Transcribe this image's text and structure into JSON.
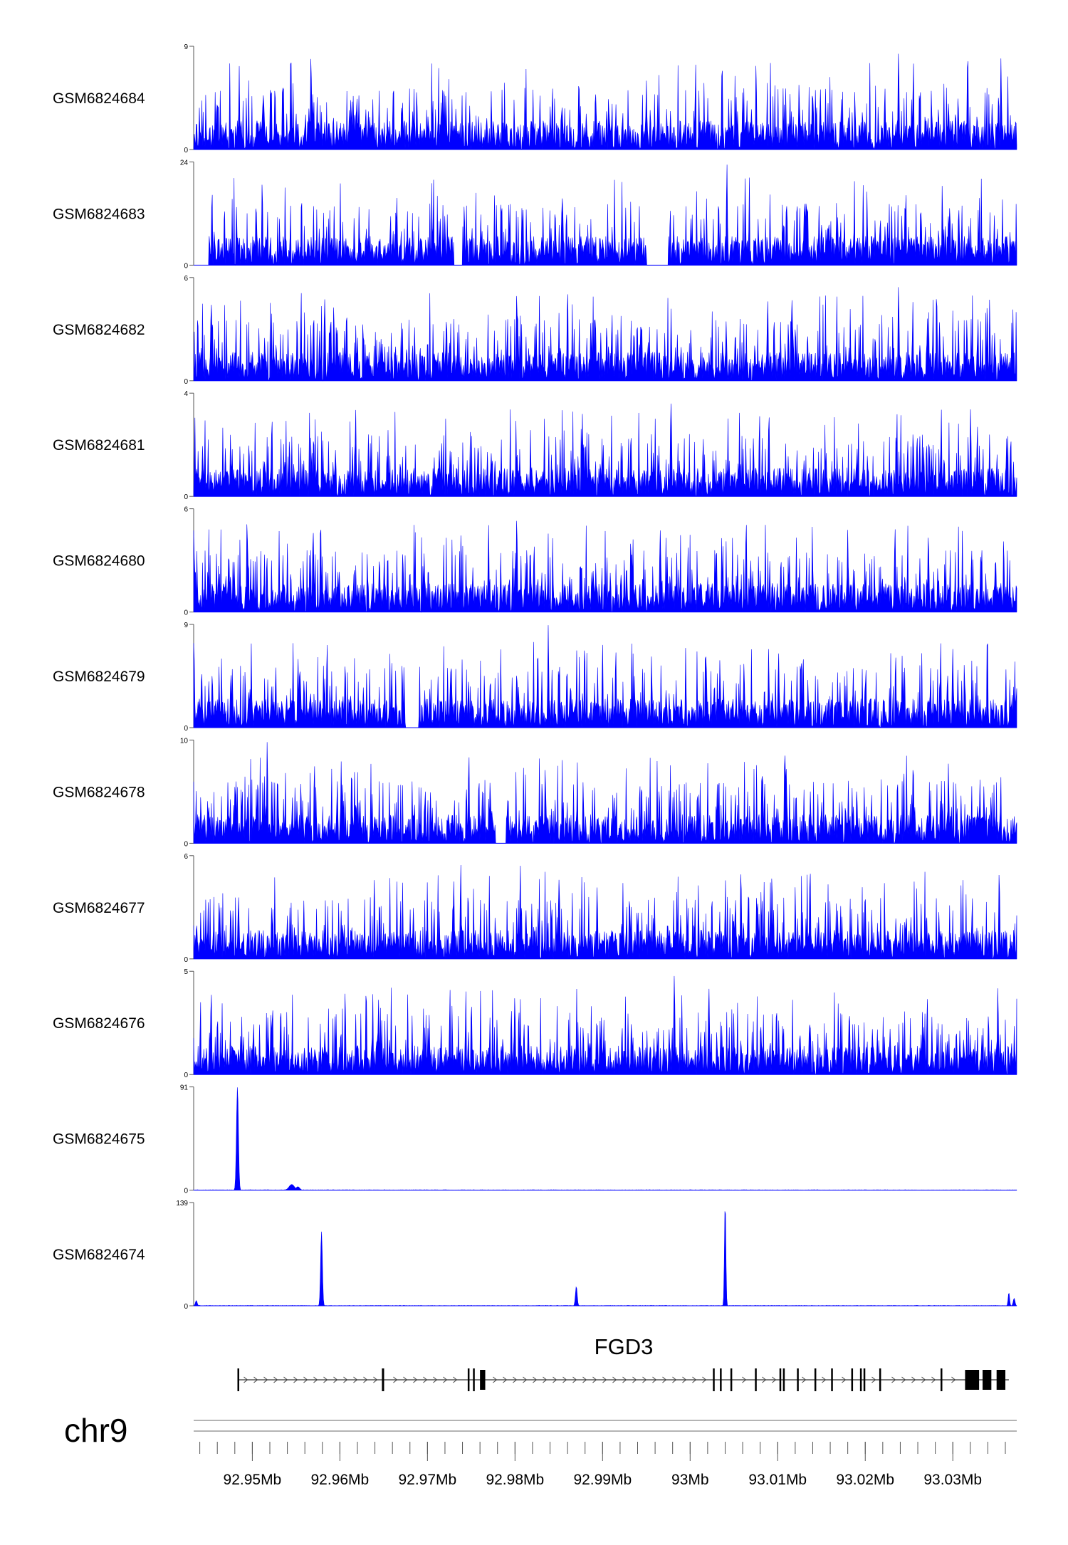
{
  "chart_data": {
    "type": "area",
    "chromosome": "chr9",
    "xlim_mb": [
      92.9433,
      93.0373
    ],
    "x_ticks_mb": [
      92.95,
      92.96,
      92.97,
      92.98,
      92.99,
      93.0,
      93.01,
      93.02,
      93.03
    ],
    "x_tick_labels": [
      "92.95Mb",
      "92.96Mb",
      "92.97Mb",
      "92.98Mb",
      "92.99Mb",
      "93Mb",
      "93.01Mb",
      "93.02Mb",
      "93.03Mb"
    ],
    "minor_tick_step_mb": 0.002,
    "color": "#0000ff",
    "series": [
      {
        "name": "GSM6824684",
        "ymin": "0",
        "ymax": "9",
        "profile": "noisy",
        "seed": 84,
        "range": [
          92.9433,
          93.0373
        ],
        "peaks": [
          [
            92.9544,
            9.0,
            6e-05
          ],
          [
            92.9567,
            8.5,
            6e-05
          ],
          [
            93.0238,
            8.9,
            6e-05
          ],
          [
            93.0317,
            8.9,
            6e-05
          ],
          [
            93.0355,
            8.0,
            6e-05
          ],
          [
            92.995,
            6.0,
            6e-05
          ]
        ]
      },
      {
        "name": "GSM6824683",
        "ymin": "0",
        "ymax": "24",
        "profile": "noisy",
        "seed": 83,
        "range": [
          92.945,
          93.0373
        ],
        "gaps": [
          [
            92.973,
            92.974
          ],
          [
            92.995,
            92.9975
          ]
        ],
        "peaks": [
          [
            92.9665,
            16.0,
            6e-05
          ],
          [
            92.9854,
            15.5,
            0.0001
          ],
          [
            93.0042,
            24.0,
            6e-05
          ],
          [
            92.9808,
            11.0,
            6e-05
          ],
          [
            93.011,
            15.5,
            6e-05
          ]
        ]
      },
      {
        "name": "GSM6824682",
        "ymin": "0",
        "ymax": "6",
        "profile": "noisy",
        "seed": 82,
        "range": [
          92.9433,
          93.0373
        ],
        "peaks": [
          [
            92.9802,
            5.3,
            6e-05
          ],
          [
            93.0238,
            5.8,
            6e-05
          ],
          [
            92.9453,
            4.8,
            6e-05
          ],
          [
            92.9593,
            4.5,
            6e-05
          ]
        ]
      },
      {
        "name": "GSM6824681",
        "ymin": "0",
        "ymax": "4",
        "profile": "noisy",
        "seed": 81,
        "range": [
          92.9433,
          93.0373
        ],
        "peaks": [
          [
            92.9618,
            3.4,
            6e-05
          ],
          [
            92.9978,
            3.8,
            6e-05
          ],
          [
            93.009,
            3.4,
            6e-05
          ],
          [
            92.9877,
            3.2,
            6e-05
          ],
          [
            93.0328,
            2.8,
            6e-05
          ]
        ]
      },
      {
        "name": "GSM6824680",
        "ymin": "0",
        "ymax": "6",
        "profile": "noisy",
        "seed": 80,
        "range": [
          92.9433,
          93.0373
        ],
        "peaks": [
          [
            92.9494,
            5.6,
            6e-05
          ],
          [
            92.9578,
            5.6,
            6e-05
          ],
          [
            92.9802,
            5.7,
            6e-05
          ],
          [
            93.0064,
            5.5,
            6e-05
          ],
          [
            92.9966,
            4.8,
            6e-05
          ],
          [
            93.018,
            4.8,
            6e-05
          ],
          [
            93.0234,
            5.0,
            6e-05
          ]
        ]
      },
      {
        "name": "GSM6824679",
        "ymin": "0",
        "ymax": "9",
        "profile": "noisy",
        "seed": 79,
        "range": [
          92.9433,
          93.0373
        ],
        "gaps": [
          [
            92.9675,
            92.969
          ]
        ],
        "peaks": [
          [
            92.9838,
            9.0,
            6e-05
          ],
          [
            92.9826,
            7.2,
            6e-05
          ],
          [
            93.0101,
            6.6,
            6e-05
          ],
          [
            93.0034,
            6.0,
            6e-05
          ]
        ]
      },
      {
        "name": "GSM6824678",
        "ymin": "0",
        "ymax": "10",
        "profile": "noisy",
        "seed": 78,
        "range": [
          92.9433,
          93.0373
        ],
        "gaps": [
          [
            92.9778,
            92.979
          ]
        ],
        "peaks": [
          [
            92.9517,
            10.0,
            6e-05
          ],
          [
            93.0082,
            7.5,
            6e-05
          ],
          [
            93.0295,
            7.8,
            6e-05
          ],
          [
            93.0255,
            6.8,
            6e-05
          ]
        ]
      },
      {
        "name": "GSM6824677",
        "ymin": "0",
        "ymax": "6",
        "profile": "noisy",
        "seed": 77,
        "range": [
          92.9433,
          93.0373
        ],
        "peaks": [
          [
            92.9738,
            5.6,
            6e-05
          ],
          [
            92.9806,
            5.5,
            6e-05
          ],
          [
            93.0058,
            5.4,
            6e-05
          ],
          [
            93.0137,
            5.5,
            6e-05
          ],
          [
            93.0353,
            5.3,
            6e-05
          ]
        ]
      },
      {
        "name": "GSM6824676",
        "ymin": "0",
        "ymax": "5",
        "profile": "noisy",
        "seed": 76,
        "range": [
          92.9433,
          93.0373
        ],
        "peaks": [
          [
            92.9982,
            5.0,
            6e-05
          ],
          [
            92.9453,
            4.2,
            6e-05
          ],
          [
            92.963,
            4.4,
            6e-05
          ],
          [
            92.9606,
            4.1,
            6e-05
          ]
        ]
      },
      {
        "name": "GSM6824675",
        "ymin": "0",
        "ymax": "91",
        "profile": "flat",
        "seed": 75,
        "range": [
          92.9433,
          93.0373
        ],
        "peaks": [
          [
            92.9483,
            91.0,
            0.00011
          ],
          [
            92.9545,
            5.0,
            0.0003
          ],
          [
            92.9552,
            3.0,
            0.0002
          ]
        ]
      },
      {
        "name": "GSM6824674",
        "ymin": "0",
        "ymax": "139",
        "profile": "flat",
        "seed": 74,
        "range": [
          92.9433,
          93.0373
        ],
        "peaks": [
          [
            92.9579,
            100.0,
            0.0001
          ],
          [
            92.987,
            26.0,
            0.0001
          ],
          [
            93.004,
            139.0,
            8e-05
          ],
          [
            93.0364,
            18.0,
            8e-05
          ],
          [
            92.9436,
            7.0,
            0.0001
          ],
          [
            93.037,
            10.0,
            0.0001
          ]
        ]
      }
    ]
  },
  "gene_track": {
    "gene_name": "FGD3",
    "strand": "+",
    "start_mb": 92.9483,
    "end_mb": 93.0364,
    "exons_mb": [
      [
        92.9483,
        92.94845
      ],
      [
        92.9648,
        92.96505
      ],
      [
        92.9746,
        92.97475
      ],
      [
        92.9752,
        92.97535
      ],
      [
        92.976,
        92.9766
      ],
      [
        93.0026,
        93.00275
      ],
      [
        93.0034,
        93.00355
      ],
      [
        93.0046,
        93.00475
      ],
      [
        93.0074,
        93.00755
      ],
      [
        93.0102,
        93.01035
      ],
      [
        93.0106,
        93.01075
      ],
      [
        93.0122,
        93.01235
      ],
      [
        93.0142,
        93.01435
      ],
      [
        93.0161,
        93.01625
      ],
      [
        93.0184,
        93.01855
      ],
      [
        93.0194,
        93.01955
      ],
      [
        93.0198,
        93.01995
      ],
      [
        93.0216,
        93.02175
      ],
      [
        93.0286,
        93.02875
      ],
      [
        93.0314,
        93.033
      ],
      [
        93.0334,
        93.0344
      ],
      [
        93.035,
        93.036
      ]
    ]
  },
  "axis": {
    "chromosome_label": "chr9"
  }
}
